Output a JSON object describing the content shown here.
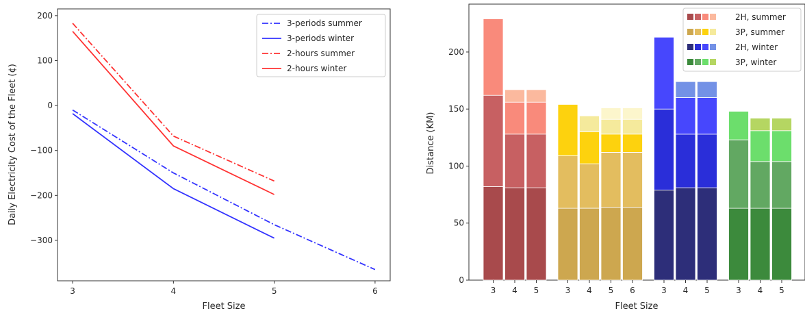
{
  "chart_data": [
    {
      "type": "line",
      "title": "",
      "xlabel": "Fleet Size",
      "ylabel": "Daily Electricity Cost of the Fleet (¢)",
      "x_ticks": [
        3,
        4,
        5,
        6
      ],
      "y_ticks": [
        -300,
        -200,
        -100,
        0,
        100,
        200
      ],
      "xlim": [
        2.85,
        6.15
      ],
      "ylim": [
        -390,
        215
      ],
      "legend_position": "top-right",
      "series": [
        {
          "name": "3-periods summer",
          "color": "#3333ff",
          "dash": "dashdot",
          "x": [
            3,
            4,
            5,
            6
          ],
          "y": [
            -10,
            -150,
            -265,
            -365
          ]
        },
        {
          "name": "3-periods winter",
          "color": "#3333ff",
          "dash": "solid",
          "x": [
            3,
            4,
            5
          ],
          "y": [
            -18,
            -185,
            -295
          ]
        },
        {
          "name": "2-hours summer",
          "color": "#ff3333",
          "dash": "dashdot",
          "x": [
            3,
            4,
            5
          ],
          "y": [
            183,
            -68,
            -168
          ]
        },
        {
          "name": "2-hours winter",
          "color": "#ff3333",
          "dash": "solid",
          "x": [
            3,
            4,
            5
          ],
          "y": [
            165,
            -90,
            -198
          ]
        }
      ]
    },
    {
      "type": "bar",
      "title": "",
      "xlabel": "Fleet Size",
      "ylabel": "Distance (KM)",
      "y_ticks": [
        0,
        50,
        100,
        150,
        200
      ],
      "ylim": [
        0,
        242
      ],
      "legend_position": "top-right",
      "groups": [
        {
          "name": "2H, summer",
          "colors": [
            "#a84a4c",
            "#c76062",
            "#f98a7b",
            "#fbb99e"
          ],
          "bars": [
            {
              "label": "3",
              "segments": [
                82,
                162,
                229
              ]
            },
            {
              "label": "4",
              "segments": [
                81,
                128,
                156,
                167
              ]
            },
            {
              "label": "5",
              "segments": [
                81,
                128,
                156,
                167
              ]
            }
          ]
        },
        {
          "name": "3P, summer",
          "colors": [
            "#cda74f",
            "#e3bd5f",
            "#fdd20e",
            "#f5ea9c",
            "#fcf6cc"
          ],
          "bars": [
            {
              "label": "3",
              "segments": [
                63,
                109,
                154
              ]
            },
            {
              "label": "4",
              "segments": [
                63,
                102,
                130,
                144
              ]
            },
            {
              "label": "5",
              "segments": [
                64,
                112,
                128,
                141,
                151
              ]
            },
            {
              "label": "6",
              "segments": [
                64,
                112,
                128,
                141,
                151
              ]
            }
          ]
        },
        {
          "name": "2H, winter",
          "colors": [
            "#2d2e79",
            "#2a2ed9",
            "#4747fd",
            "#7391e6"
          ],
          "bars": [
            {
              "label": "3",
              "segments": [
                79,
                150,
                213
              ]
            },
            {
              "label": "4",
              "segments": [
                81,
                128,
                160,
                174
              ]
            },
            {
              "label": "5",
              "segments": [
                81,
                128,
                160,
                174
              ]
            }
          ]
        },
        {
          "name": "3P, winter",
          "colors": [
            "#3c8a3c",
            "#62a862",
            "#6cde6c",
            "#b5d662"
          ],
          "bars": [
            {
              "label": "3",
              "segments": [
                63,
                123,
                148
              ]
            },
            {
              "label": "4",
              "segments": [
                63,
                104,
                131,
                142
              ]
            },
            {
              "label": "5",
              "segments": [
                63,
                104,
                131,
                142
              ]
            }
          ]
        }
      ]
    }
  ]
}
